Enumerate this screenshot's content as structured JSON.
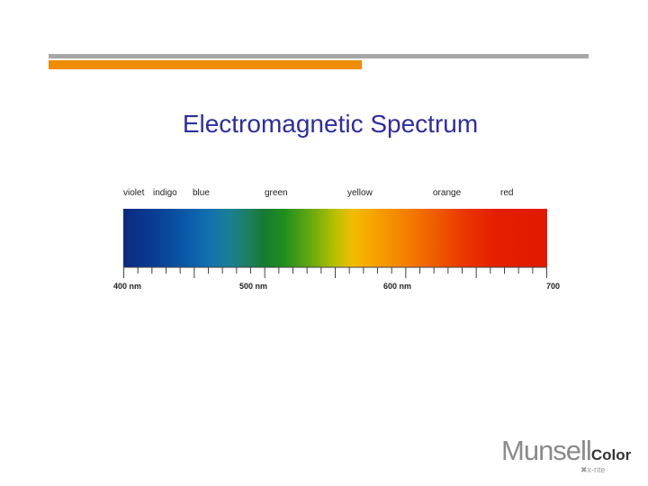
{
  "slide": {
    "title": "Electromagnetic Spectrum"
  },
  "spectrum": {
    "color_names": [
      "violet",
      "indigo",
      "blue",
      "green",
      "yellow",
      "orange",
      "red"
    ],
    "wavelength_labels": [
      "400 nm",
      "500 nm",
      "600 nm",
      "700"
    ],
    "colors": {
      "accent_bar": "#f08c00",
      "rule_gray": "#a6a6a6",
      "title": "#2e2e9e"
    }
  },
  "logo": {
    "brand": "Munsell",
    "suffix": "Color",
    "maker": "x-rite"
  }
}
